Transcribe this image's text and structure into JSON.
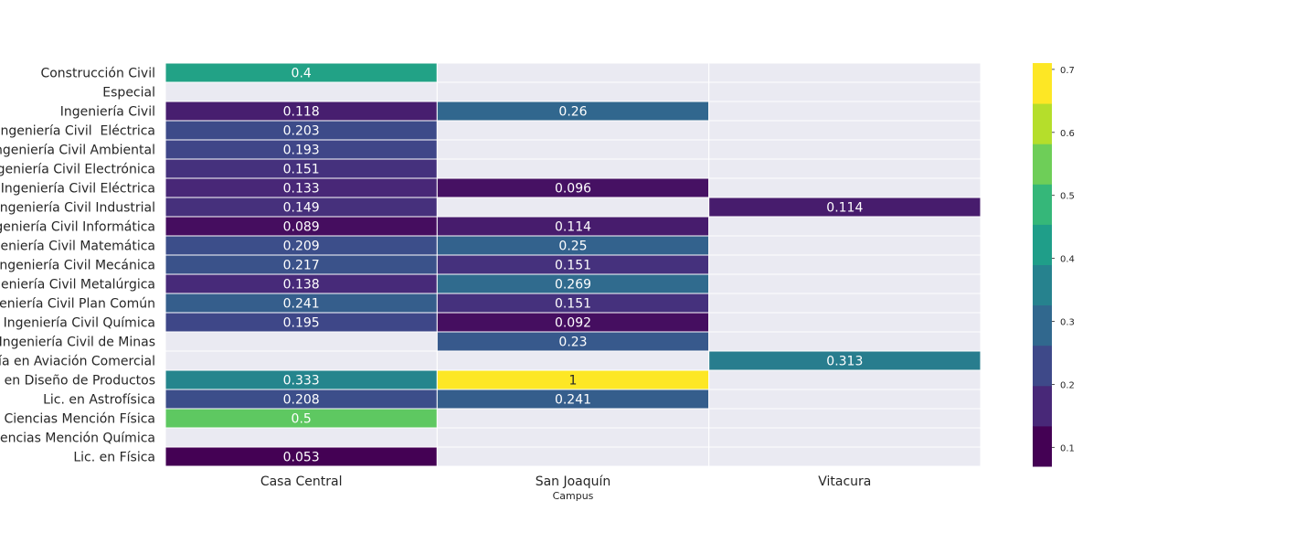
{
  "chart_data": {
    "type": "heatmap",
    "xlabel": "Campus",
    "ylabel": "",
    "x_categories": [
      "Casa Central",
      "San Joaquín",
      "Vitacura"
    ],
    "y_categories": [
      "Construcción Civil",
      "Especial",
      "Ingeniería Civil",
      "Ingeniería Civil  Eléctrica",
      "Ingeniería Civil Ambiental",
      "Ingeniería Civil Electrónica",
      "Ingeniería Civil Eléctrica",
      "Ingeniería Civil Industrial",
      "Ingeniería Civil Informática",
      "Ingeniería Civil Matemática",
      "Ingeniería Civil Mecánica",
      "Ingeniería Civil Metalúrgica",
      "Ingeniería Civil Plan Común",
      "Ingeniería Civil Química",
      "Ingeniería Civil de Minas",
      "Ingeniería en Aviación Comercial",
      "Ingeniería en Diseño de Productos",
      "Lic. en Astrofísica",
      "Lic. en Ciencias Mención Física",
      "Lic. en Ciencias Mención Química",
      "Lic. en Física"
    ],
    "values": [
      [
        0.4,
        null,
        null
      ],
      [
        null,
        null,
        null
      ],
      [
        0.118,
        0.26,
        null
      ],
      [
        0.203,
        null,
        null
      ],
      [
        0.193,
        null,
        null
      ],
      [
        0.151,
        null,
        null
      ],
      [
        0.133,
        0.096,
        null
      ],
      [
        0.149,
        null,
        0.114
      ],
      [
        0.089,
        0.114,
        null
      ],
      [
        0.209,
        0.25,
        null
      ],
      [
        0.217,
        0.151,
        null
      ],
      [
        0.138,
        0.269,
        null
      ],
      [
        0.241,
        0.151,
        null
      ],
      [
        0.195,
        0.092,
        null
      ],
      [
        null,
        0.23,
        null
      ],
      [
        null,
        null,
        0.313
      ],
      [
        0.333,
        1,
        null
      ],
      [
        0.208,
        0.241,
        null
      ],
      [
        0.5,
        null,
        null
      ],
      [
        null,
        null,
        null
      ],
      [
        0.053,
        null,
        null
      ]
    ],
    "value_labels": [
      [
        "0.4",
        "",
        ""
      ],
      [
        "",
        "",
        ""
      ],
      [
        "0.118",
        "0.26",
        ""
      ],
      [
        "0.203",
        "",
        ""
      ],
      [
        "0.193",
        "",
        ""
      ],
      [
        "0.151",
        "",
        ""
      ],
      [
        "0.133",
        "0.096",
        ""
      ],
      [
        "0.149",
        "",
        "0.114"
      ],
      [
        "0.089",
        "0.114",
        ""
      ],
      [
        "0.209",
        "0.25",
        ""
      ],
      [
        "0.217",
        "0.151",
        ""
      ],
      [
        "0.138",
        "0.269",
        ""
      ],
      [
        "0.241",
        "0.151",
        ""
      ],
      [
        "0.195",
        "0.092",
        ""
      ],
      [
        "",
        "0.23",
        ""
      ],
      [
        "",
        "",
        "0.313"
      ],
      [
        "0.333",
        "1",
        ""
      ],
      [
        "0.208",
        "0.241",
        ""
      ],
      [
        "0.5",
        "",
        ""
      ],
      [
        "",
        "",
        ""
      ],
      [
        "0.053",
        "",
        ""
      ]
    ],
    "colormap": "viridis",
    "colorbar": {
      "min": 0.07,
      "max": 0.71,
      "ticks": [
        0.1,
        0.2,
        0.3,
        0.4,
        0.5,
        0.6,
        0.7
      ],
      "tick_labels": [
        "0.1",
        "0.2",
        "0.3",
        "0.4",
        "0.5",
        "0.6",
        "0.7"
      ],
      "bands": [
        "#440154",
        "#482878",
        "#3e4989",
        "#31688e",
        "#26828e",
        "#1f9e89",
        "#35b779",
        "#6ece58",
        "#b5de2b",
        "#fde725"
      ]
    },
    "colors": {
      "missing_cell": "#eaeaf2",
      "grid_line": "#ffffff",
      "text_dark": "#262626",
      "text_light": "#ffffff"
    },
    "grid": false,
    "legend": "colorbar-right"
  }
}
